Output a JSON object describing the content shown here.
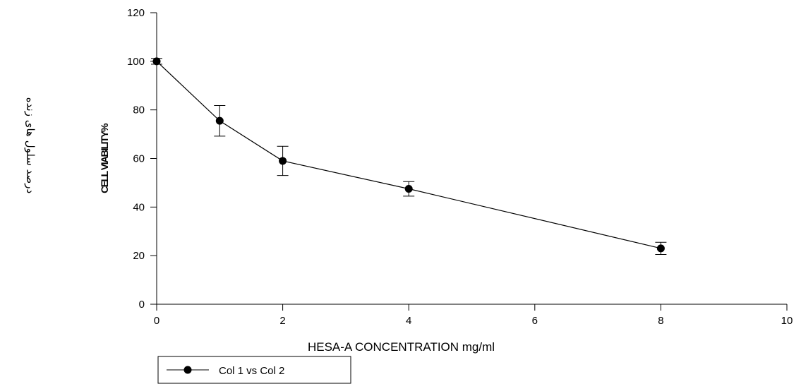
{
  "chart_data": {
    "type": "line",
    "xlabel": "HESA-A CONCENTRATION  mg/ml",
    "ylabel": "CELL VIABILITY%",
    "ylabel_secondary": "درصد سلول های زنده",
    "xlim": [
      0,
      10
    ],
    "ylim": [
      0,
      120
    ],
    "xticks": [
      0,
      2,
      4,
      6,
      8,
      10
    ],
    "yticks": [
      0,
      20,
      40,
      60,
      80,
      100,
      120
    ],
    "grid": false,
    "legend_position": "bottom-left",
    "series": [
      {
        "name": "Col 1 vs Col 2",
        "color": "#000000",
        "x": [
          0,
          1,
          2,
          4,
          8
        ],
        "y": [
          100,
          75.5,
          59,
          47.5,
          23
        ],
        "error": [
          1.2,
          6.3,
          6,
          3,
          2.5
        ]
      }
    ]
  }
}
